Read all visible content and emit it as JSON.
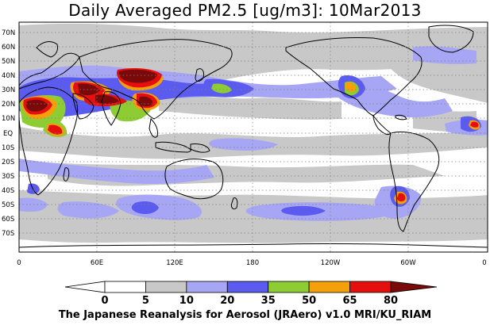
{
  "title": "Daily Averaged PM2.5 [ug/m3]: 10Mar2013",
  "credit": "The Japanese Reanalysis for Aerosol (JRAero) v1.0 MRI/KU_RIAM",
  "latitude_labels": [
    "70N",
    "60N",
    "50N",
    "40N",
    "30N",
    "20N",
    "10N",
    "EQ",
    "10S",
    "20S",
    "30S",
    "40S",
    "50S",
    "60S",
    "70S"
  ],
  "longitude_labels": [
    "0",
    "60E",
    "120E",
    "180",
    "120W",
    "60W",
    "0"
  ],
  "colorbar": {
    "ticks": [
      "0",
      "5",
      "10",
      "20",
      "35",
      "50",
      "65",
      "80"
    ],
    "colors": [
      "#ffffff",
      "#c8c8c8",
      "#a6a6f4",
      "#5b5bf0",
      "#8dcc32",
      "#f5a00a",
      "#e60f0f",
      "#7a0a0a"
    ],
    "unit": "ug/m3"
  },
  "colors": {
    "coastline": "#000000",
    "grid": "#808080",
    "band_5_10": "#c8c8c8",
    "band_10_20": "#a6a6f4",
    "band_20_35": "#5b5bf0",
    "band_35_50": "#8dcc32",
    "band_50_65": "#f5a00a",
    "band_65_80": "#e60f0f",
    "band_80_plus": "#7a0a0a"
  }
}
